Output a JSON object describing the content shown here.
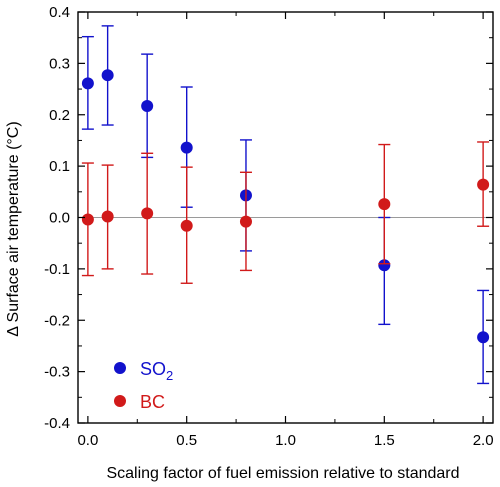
{
  "chart_data": {
    "type": "scatter",
    "title": "",
    "xlabel": "Scaling factor of fuel emission relative to standard",
    "ylabel": "Δ Surface air temperature (°C)",
    "xlim": [
      -0.05,
      2.05
    ],
    "ylim": [
      -0.4,
      0.4
    ],
    "x_ticks": [
      0.0,
      0.5,
      1.0,
      1.5,
      2.0
    ],
    "x_tick_labels": [
      "0.0",
      "0.5",
      "1.0",
      "1.5",
      "2.0"
    ],
    "y_ticks": [
      -0.4,
      -0.3,
      -0.2,
      -0.1,
      0.0,
      0.1,
      0.2,
      0.3,
      0.4
    ],
    "y_tick_labels": [
      "-0.4",
      "-0.3",
      "-0.2",
      "-0.1",
      "0.0",
      "0.1",
      "0.2",
      "0.3",
      "0.4"
    ],
    "reference_line_y": 0.0,
    "legend_position": "bottom-left",
    "grid": false,
    "series": [
      {
        "name": "SO2",
        "legend_label": "SO",
        "legend_subscript": "2",
        "color": "#1212cc",
        "x": [
          0.0,
          0.1,
          0.3,
          0.5,
          0.8,
          1.5,
          2.0
        ],
        "y": [
          0.261,
          0.277,
          0.217,
          0.136,
          0.043,
          -0.093,
          -0.233
        ],
        "err_low": [
          0.172,
          0.18,
          0.117,
          0.02,
          -0.065,
          -0.208,
          -0.323
        ],
        "err_high": [
          0.352,
          0.373,
          0.318,
          0.254,
          0.151,
          0.0,
          -0.142
        ]
      },
      {
        "name": "BC",
        "legend_label": "BC",
        "legend_subscript": "",
        "color": "#d11a1a",
        "x": [
          0.0,
          0.1,
          0.3,
          0.5,
          0.8,
          1.5,
          2.0
        ],
        "y": [
          -0.004,
          0.002,
          0.008,
          -0.016,
          -0.008,
          0.026,
          0.064
        ],
        "err_low": [
          -0.113,
          -0.1,
          -0.11,
          -0.128,
          -0.103,
          -0.09,
          -0.017
        ],
        "err_high": [
          0.106,
          0.102,
          0.125,
          0.098,
          0.088,
          0.142,
          0.147
        ]
      }
    ]
  }
}
